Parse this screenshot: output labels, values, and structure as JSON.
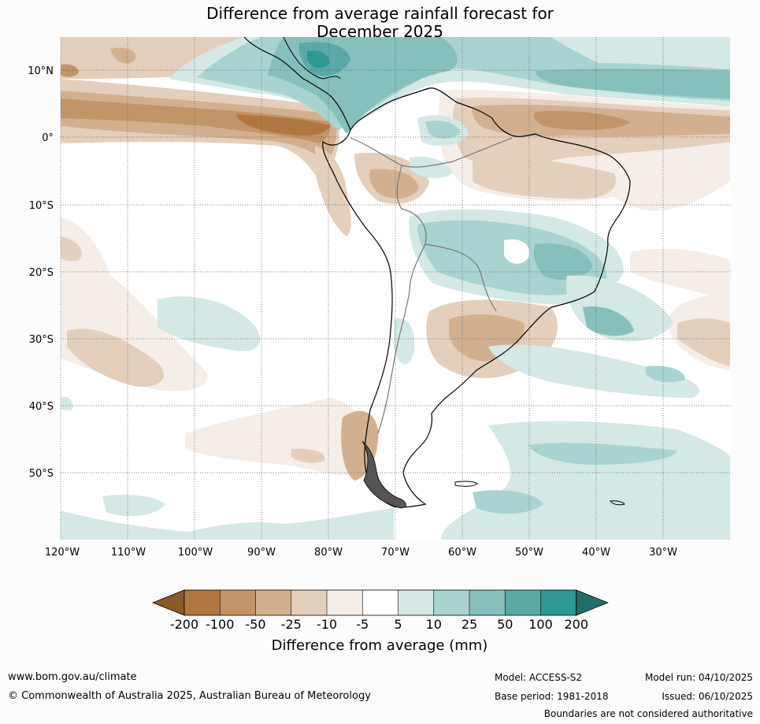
{
  "title": {
    "line1": "Difference from average rainfall forecast for",
    "line2": "December 2025"
  },
  "map": {
    "lat_labels": [
      "10°N",
      "0°",
      "10°S",
      "20°S",
      "30°S",
      "40°S",
      "50°S"
    ],
    "lon_labels": [
      "120°W",
      "110°W",
      "100°W",
      "90°W",
      "80°W",
      "70°W",
      "60°W",
      "50°W",
      "40°W",
      "30°W"
    ]
  },
  "legend": {
    "title": "Difference from average (mm)",
    "ticks": [
      "-200",
      "-100",
      "-50",
      "-25",
      "-10",
      "-5",
      "5",
      "10",
      "25",
      "50",
      "100",
      "200"
    ],
    "colors": [
      "#8b5a2b",
      "#b07840",
      "#c39468",
      "#d2b08f",
      "#e3cfbc",
      "#f5ede7",
      "#ffffff",
      "#d4e8e6",
      "#a9d3d0",
      "#85c0bd",
      "#5aa9a6",
      "#2e9893",
      "#226d6b"
    ]
  },
  "footer": {
    "website": "www.bom.gov.au/climate",
    "copyright": "© Commonwealth of Australia 2025, Australian Bureau of Meteorology",
    "model": "Model: ACCESS-S2",
    "base_period": "Base period: 1981-2018",
    "model_run": "Model run: 04/10/2025",
    "issued": "Issued: 06/10/2025",
    "disclaimer": "Boundaries are not considered authoritative"
  }
}
